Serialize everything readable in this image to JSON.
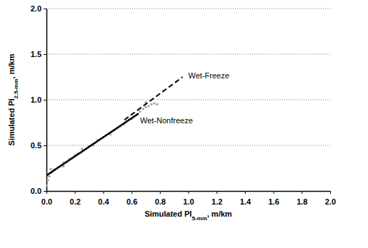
{
  "chart_data": {
    "type": "scatter",
    "x_label": "Simulated PI5-mm, m/km",
    "y_label": "Simulated PI2.5-mm, m/km",
    "xlim": [
      0,
      2
    ],
    "ylim": [
      0,
      2
    ],
    "xticks": [
      {
        "value": 0,
        "label": "0.0"
      },
      {
        "value": 0.2,
        "label": "0.2"
      },
      {
        "value": 0.4,
        "label": "0.4"
      },
      {
        "value": 0.6,
        "label": "0.6"
      },
      {
        "value": 0.8,
        "label": "0.8"
      },
      {
        "value": 1,
        "label": "1.0"
      },
      {
        "value": 1.2,
        "label": "1.2"
      },
      {
        "value": 1.4,
        "label": "1.4"
      },
      {
        "value": 1.6,
        "label": "1.6"
      },
      {
        "value": 1.8,
        "label": "1.8"
      },
      {
        "value": 2,
        "label": "2.0"
      }
    ],
    "yticks": [
      {
        "value": 0,
        "label": "0.0"
      },
      {
        "value": 0.5,
        "label": "0.5"
      },
      {
        "value": 1,
        "label": "1.0"
      },
      {
        "value": 1.5,
        "label": "1.5"
      },
      {
        "value": 2,
        "label": "2.0"
      }
    ],
    "grid": true,
    "series": [
      {
        "type": "scatter",
        "color": "#a8a8a8",
        "marker": "square",
        "x": [
          0.0,
          0.01,
          0.02,
          0.03,
          0.04,
          0.05,
          0.06,
          0.08,
          0.1,
          0.12,
          0.14,
          0.16,
          0.18,
          0.2,
          0.22,
          0.24,
          0.26,
          0.28,
          0.3,
          0.32,
          0.34,
          0.36,
          0.38,
          0.4,
          0.42,
          0.44,
          0.46,
          0.48,
          0.5,
          0.52,
          0.54,
          0.56,
          0.58,
          0.6,
          0.62,
          0.64,
          0.66,
          0.68,
          0.7,
          0.72,
          0.74,
          0.76,
          0.78,
          0.03,
          0.12,
          0.25,
          0.33,
          0.45,
          0.55,
          0.7
        ],
        "values": [
          0.06,
          0.12,
          0.16,
          0.2,
          0.21,
          0.23,
          0.24,
          0.26,
          0.28,
          0.31,
          0.32,
          0.35,
          0.36,
          0.39,
          0.41,
          0.42,
          0.45,
          0.46,
          0.49,
          0.51,
          0.53,
          0.56,
          0.57,
          0.59,
          0.61,
          0.63,
          0.65,
          0.67,
          0.69,
          0.71,
          0.73,
          0.76,
          0.78,
          0.79,
          0.82,
          0.84,
          0.87,
          0.9,
          0.92,
          0.93,
          0.95,
          0.96,
          0.95,
          0.24,
          0.27,
          0.46,
          0.5,
          0.62,
          0.74,
          0.97
        ]
      },
      {
        "type": "line",
        "name": "Wet-Nonfreeze",
        "color": "#000000",
        "line_style": "solid",
        "x": [
          0,
          0.65
        ],
        "values": [
          0.17,
          0.85
        ]
      },
      {
        "type": "line",
        "name": "Wet-Freeze",
        "color": "#000000",
        "line_style": "dashed",
        "x": [
          0.55,
          0.96
        ],
        "values": [
          0.78,
          1.25
        ]
      }
    ]
  }
}
